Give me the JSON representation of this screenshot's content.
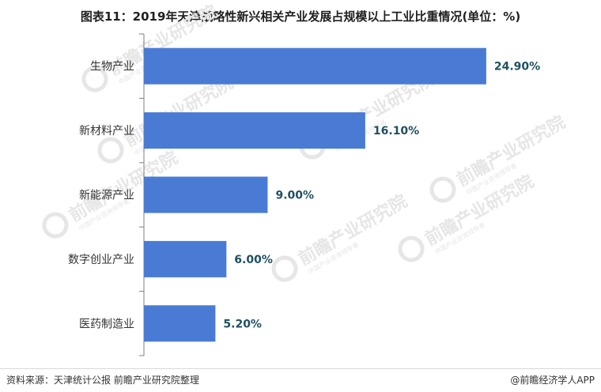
{
  "title": "图表11：2019年天津战略性新兴相关产业发展占规模以上工业比重情况(单位：%)",
  "watermark": {
    "brand": "前瞻产业研究院",
    "subtext": "中国产业咨询领导者",
    "color": "#e6e6e6"
  },
  "chart_data": {
    "type": "bar",
    "orientation": "horizontal",
    "categories": [
      "生物产业",
      "新材料产业",
      "新能源产业",
      "数字创业产业",
      "医药制造业"
    ],
    "values": [
      24.9,
      16.1,
      9.0,
      6.0,
      5.2
    ],
    "value_labels": [
      "24.90%",
      "16.10%",
      "9.00%",
      "6.00%",
      "5.20%"
    ],
    "xlim": [
      0,
      26
    ],
    "bar_color": "#4a7bd4",
    "label_color": "#1f4f5f",
    "grid": false
  },
  "footer": {
    "source": "资料来源：天津统计公报 前瞻产业研究院整理",
    "credit": "@前瞻经济学人APP"
  }
}
